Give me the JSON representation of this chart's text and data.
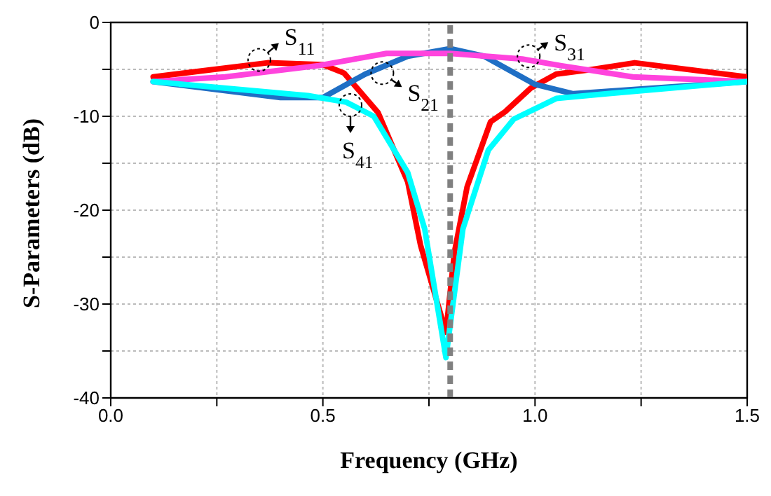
{
  "chart_data": {
    "type": "line",
    "xlabel": "Frequency  (GHz)",
    "ylabel": "S-Parameters (dB)",
    "xlim": [
      0,
      1.5
    ],
    "ylim": [
      -40,
      0
    ],
    "xticks": [
      {
        "value": 0,
        "label": "0.0"
      },
      {
        "value": 0.25,
        "label": null
      },
      {
        "value": 0.5,
        "label": "0.5"
      },
      {
        "value": 0.75,
        "label": null
      },
      {
        "value": 1.0,
        "label": "1.0"
      },
      {
        "value": 1.25,
        "label": null
      },
      {
        "value": 1.5,
        "label": "1.5"
      }
    ],
    "yticks": [
      -40,
      {
        "value": -35,
        "label": null
      },
      -30,
      {
        "value": -25,
        "label": null
      },
      -20,
      {
        "value": -15,
        "label": null
      },
      -10,
      {
        "value": -5,
        "label": null
      },
      0
    ],
    "grid": true,
    "legend": false,
    "marker": "none",
    "line_style": "solid",
    "series": [
      {
        "color": "#ff0000",
        "x": [
          0.1,
          0.37,
          0.5,
          0.55,
          0.63,
          0.7,
          0.73,
          0.79,
          0.81,
          0.84,
          0.895,
          0.93,
          0.99,
          1.05,
          1.12,
          1.235,
          1.5
        ],
        "values": [
          -5.8,
          -4.3,
          -4.5,
          -5.4,
          -9.6,
          -17,
          -23.7,
          -33,
          -24.5,
          -17.5,
          -10.6,
          -9.5,
          -7,
          -5.5,
          -5.1,
          -4.3,
          -5.8
        ]
      },
      {
        "color": "#1f6fc5",
        "x": [
          0.1,
          0.4,
          0.5,
          0.6,
          0.7,
          0.8,
          0.88,
          1.0,
          1.09,
          1.28,
          1.5
        ],
        "values": [
          -6.3,
          -8,
          -8,
          -5.5,
          -3.6,
          -2.8,
          -3.6,
          -6.6,
          -7.6,
          -7,
          -6.3
        ]
      },
      {
        "color": "#ff44dd",
        "x": [
          0.1,
          0.27,
          0.49,
          0.65,
          0.8,
          0.97,
          1.06,
          1.23,
          1.5
        ],
        "values": [
          -6.3,
          -5.8,
          -4.6,
          -3.3,
          -3.3,
          -3.9,
          -4.6,
          -5.8,
          -6.3
        ]
      },
      {
        "color": "#00ffff",
        "x": [
          0.1,
          0.465,
          0.555,
          0.62,
          0.7,
          0.74,
          0.79,
          0.83,
          0.89,
          0.95,
          1.05,
          1.17,
          1.5
        ],
        "values": [
          -6.3,
          -7.8,
          -8.5,
          -10,
          -16,
          -22,
          -35.7,
          -22,
          -13.6,
          -10.3,
          -8.1,
          -7.6,
          -6.3
        ]
      }
    ],
    "ref_lines": [
      {
        "axis": "x",
        "value": 0.8,
        "color": "#808080",
        "line_style": "dashed"
      }
    ],
    "annotations": [
      {
        "text": "S$_{11}$",
        "x": 0.35,
        "y": -4.0
      },
      {
        "text": "S$_{21}$",
        "x": 0.64,
        "y": -5.4
      },
      {
        "text": "S$_{41}$",
        "x": 0.565,
        "y": -8.8
      },
      {
        "text": "S$_{31}$",
        "x": 0.985,
        "y": -3.6
      }
    ]
  }
}
